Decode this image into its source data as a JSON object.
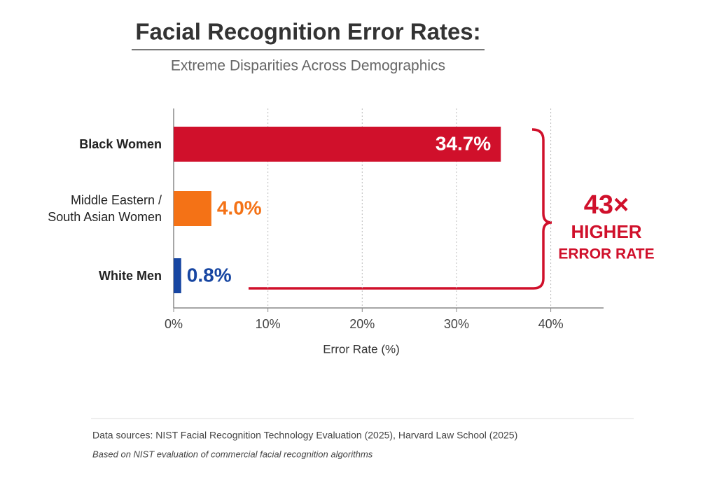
{
  "chart_data": {
    "type": "bar",
    "orientation": "horizontal",
    "title": "Facial Recognition Error Rates:",
    "subtitle": "Extreme Disparities Across Demographics",
    "categories": [
      "Black Women",
      "Middle Eastern /\nSouth Asian Women",
      "White Men"
    ],
    "values": [
      34.7,
      4.0,
      0.8
    ],
    "value_labels": [
      "34.7%",
      "4.0%",
      "0.8%"
    ],
    "colors": [
      "#d0102b",
      "#f47216",
      "#1746a2"
    ],
    "xlim": [
      0,
      45.6
    ],
    "xticks": [
      {
        "value": 0,
        "label": "0%"
      },
      {
        "value": 10,
        "label": "10%"
      },
      {
        "value": 20,
        "label": "20%"
      },
      {
        "value": 30,
        "label": "30%"
      },
      {
        "value": 40,
        "label": "40%"
      }
    ],
    "xlabel": "Error Rate (%)",
    "grid": true,
    "annotation": {
      "multiplier": "43×",
      "lines": [
        "HIGHER",
        "ERROR RATE"
      ]
    },
    "source": "Data sources: NIST Facial Recognition Technology Evaluation (2025), Harvard Law School (2025)",
    "note": "Based on NIST evaluation of commercial facial recognition algorithms"
  }
}
